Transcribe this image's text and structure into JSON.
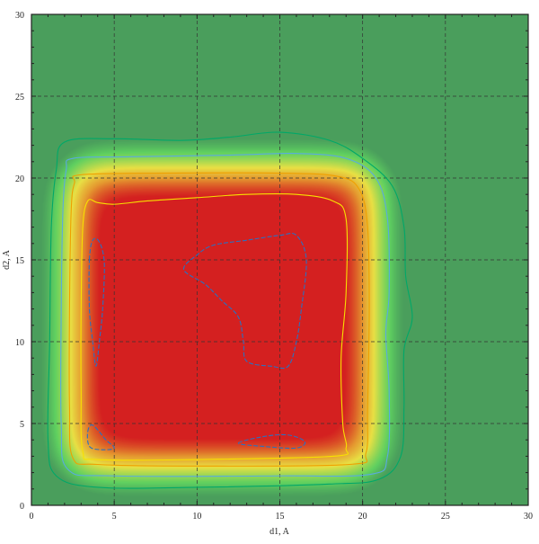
{
  "chart_data": {
    "type": "heatmap",
    "title": "",
    "xlabel": "d1, A",
    "ylabel": "d2, A",
    "xlim": [
      0,
      30
    ],
    "ylim": [
      0,
      30
    ],
    "xticks": [
      "0",
      "5",
      "10",
      "15",
      "20",
      "25",
      "30"
    ],
    "yticks": [
      "0",
      "5",
      "10",
      "15",
      "20",
      "25",
      "30"
    ],
    "grid": true,
    "colormap": {
      "low": "#4a9e5c",
      "rim": "#5fd060",
      "mid": "#e8e044",
      "high_mid": "#e59a30",
      "high": "#d42020"
    },
    "plateau": {
      "x": [
        2.5,
        20.5
      ],
      "y": [
        2.5,
        20.5
      ]
    },
    "contours": [
      {
        "color": "#00a868",
        "style": "solid",
        "points": [
          [
            2,
            22.2
          ],
          [
            5,
            22.4
          ],
          [
            9,
            22.3
          ],
          [
            12,
            22.5
          ],
          [
            15,
            22.8
          ],
          [
            18,
            22.3
          ],
          [
            20,
            21.2
          ],
          [
            21.8,
            19.5
          ],
          [
            22.5,
            17
          ],
          [
            22.6,
            14
          ],
          [
            23,
            11.5
          ],
          [
            22.5,
            9.5
          ],
          [
            22.5,
            6
          ],
          [
            22.3,
            3
          ],
          [
            21,
            1.6
          ],
          [
            18,
            1.3
          ],
          [
            10,
            1.1
          ],
          [
            4,
            1.1
          ],
          [
            1.5,
            1.8
          ],
          [
            1,
            4
          ],
          [
            1.1,
            10
          ],
          [
            1.2,
            17
          ],
          [
            1.5,
            20.5
          ]
        ]
      },
      {
        "color": "#5aaae0",
        "style": "solid",
        "points": [
          [
            2.5,
            21.2
          ],
          [
            6,
            21.3
          ],
          [
            12,
            21.4
          ],
          [
            16,
            21.5
          ],
          [
            19,
            21.2
          ],
          [
            20.8,
            20
          ],
          [
            21.5,
            17.5
          ],
          [
            21.6,
            13
          ],
          [
            21.4,
            10.5
          ],
          [
            21.6,
            7
          ],
          [
            21.5,
            3
          ],
          [
            20.5,
            1.9
          ],
          [
            15,
            1.8
          ],
          [
            5,
            1.8
          ],
          [
            2.2,
            2.2
          ],
          [
            1.8,
            5
          ],
          [
            1.8,
            12
          ],
          [
            1.9,
            18
          ],
          [
            2.1,
            20.5
          ]
        ]
      },
      {
        "color": "#f0a000",
        "style": "solid",
        "points": [
          [
            3,
            20.2
          ],
          [
            8,
            20.3
          ],
          [
            15,
            20.3
          ],
          [
            18.5,
            20.1
          ],
          [
            19.8,
            19.3
          ],
          [
            20.3,
            17
          ],
          [
            20.4,
            12
          ],
          [
            20.3,
            6
          ],
          [
            20.2,
            3.2
          ],
          [
            19.2,
            2.5
          ],
          [
            10,
            2.4
          ],
          [
            4,
            2.5
          ],
          [
            2.5,
            2.9
          ],
          [
            2.3,
            6
          ],
          [
            2.3,
            12
          ],
          [
            2.4,
            18
          ],
          [
            2.6,
            19.7
          ]
        ]
      },
      {
        "color": "#f8e000",
        "style": "solid",
        "points": [
          [
            3.4,
            18.6
          ],
          [
            4,
            18.5
          ],
          [
            5,
            18.4
          ],
          [
            7,
            18.6
          ],
          [
            10,
            18.8
          ],
          [
            13,
            19
          ],
          [
            16,
            19
          ],
          [
            18.2,
            18.6
          ],
          [
            19,
            17.5
          ],
          [
            19,
            13
          ],
          [
            18.7,
            9
          ],
          [
            18.8,
            5
          ],
          [
            19,
            3.5
          ],
          [
            18.2,
            3
          ],
          [
            10,
            2.8
          ],
          [
            4,
            2.8
          ],
          [
            3.1,
            3.3
          ],
          [
            3,
            7
          ],
          [
            3,
            12
          ],
          [
            3.1,
            17
          ]
        ]
      },
      {
        "color": "#2a70c0",
        "style": "dashed",
        "points": [
          [
            9.2,
            14.4
          ],
          [
            10,
            15.3
          ],
          [
            11,
            15.9
          ],
          [
            13,
            16.2
          ],
          [
            15,
            16.5
          ],
          [
            16,
            16.5
          ],
          [
            16.6,
            15
          ],
          [
            16.3,
            12
          ],
          [
            16,
            10
          ],
          [
            15.5,
            8.5
          ],
          [
            14.5,
            8.5
          ],
          [
            13,
            8.8
          ],
          [
            12.8,
            10
          ],
          [
            12.5,
            11.5
          ],
          [
            11.5,
            12.5
          ],
          [
            10.5,
            13.5
          ]
        ]
      },
      {
        "color": "#2a70c0",
        "style": "dashed",
        "points": [
          [
            3.5,
            15
          ],
          [
            3.7,
            16.2
          ],
          [
            4.1,
            16.1
          ],
          [
            4.4,
            14.8
          ],
          [
            4.3,
            12
          ],
          [
            4.1,
            10
          ],
          [
            3.9,
            8.5
          ],
          [
            3.7,
            10
          ],
          [
            3.5,
            12
          ]
        ]
      },
      {
        "color": "#2a70c0",
        "style": "dashed",
        "points": [
          [
            3.4,
            4.5
          ],
          [
            3.7,
            4.9
          ],
          [
            4.5,
            4
          ],
          [
            5,
            3.5
          ],
          [
            4.2,
            3.4
          ],
          [
            3.5,
            3.6
          ]
        ]
      },
      {
        "color": "#2a70c0",
        "style": "dashed",
        "points": [
          [
            12.5,
            3.8
          ],
          [
            14,
            4.2
          ],
          [
            15.5,
            4.3
          ],
          [
            16.5,
            3.9
          ],
          [
            16,
            3.5
          ],
          [
            14,
            3.6
          ]
        ]
      }
    ]
  }
}
